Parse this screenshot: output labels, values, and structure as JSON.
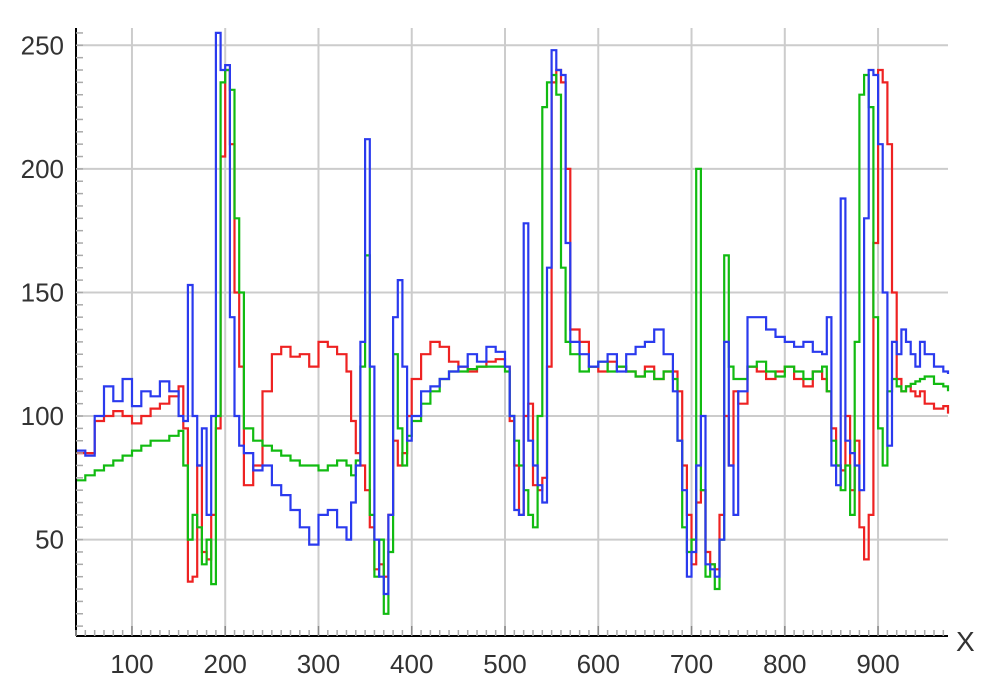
{
  "chart_data": {
    "type": "line",
    "title": "",
    "xlabel": "X",
    "ylabel": "",
    "xlim": [
      40,
      975
    ],
    "ylim": [
      11,
      257
    ],
    "x_ticks": [
      100,
      200,
      300,
      400,
      500,
      600,
      700,
      800,
      900
    ],
    "y_ticks": [
      50,
      100,
      150,
      200,
      250
    ],
    "x_tick_labels": [
      "100",
      "200",
      "300",
      "400",
      "500",
      "600",
      "700",
      "800",
      "900"
    ],
    "y_tick_labels": [
      "50",
      "100",
      "150",
      "200",
      "250"
    ],
    "grid": true,
    "legend": "none",
    "colors": {
      "red": "#ee2222",
      "green": "#11bb11",
      "blue": "#2a3aee",
      "grid": "#cccccc",
      "axis": "#000000"
    },
    "series": [
      {
        "color": "#ee2222",
        "x": [
          40,
          50,
          60,
          70,
          80,
          90,
          100,
          110,
          120,
          130,
          140,
          150,
          155,
          160,
          165,
          170,
          175,
          180,
          185,
          190,
          195,
          200,
          205,
          210,
          215,
          220,
          230,
          240,
          250,
          260,
          270,
          280,
          290,
          300,
          310,
          320,
          330,
          335,
          340,
          345,
          350,
          355,
          360,
          365,
          370,
          375,
          380,
          385,
          390,
          395,
          400,
          410,
          420,
          430,
          440,
          450,
          460,
          470,
          480,
          490,
          500,
          505,
          510,
          515,
          520,
          525,
          530,
          535,
          540,
          545,
          550,
          555,
          560,
          565,
          570,
          580,
          590,
          600,
          610,
          620,
          630,
          640,
          650,
          660,
          670,
          680,
          685,
          690,
          695,
          700,
          705,
          710,
          715,
          720,
          725,
          730,
          735,
          740,
          745,
          750,
          760,
          770,
          780,
          790,
          800,
          810,
          820,
          830,
          840,
          845,
          850,
          855,
          860,
          865,
          870,
          875,
          880,
          885,
          890,
          895,
          900,
          905,
          910,
          915,
          920,
          925,
          930,
          935,
          940,
          945,
          950,
          960,
          970,
          975
        ],
        "y": [
          85,
          85,
          98,
          100,
          102,
          100,
          97,
          100,
          103,
          105,
          108,
          112,
          95,
          33,
          35,
          80,
          45,
          42,
          60,
          95,
          205,
          240,
          210,
          150,
          120,
          72,
          80,
          110,
          125,
          128,
          124,
          125,
          120,
          130,
          128,
          125,
          118,
          98,
          85,
          80,
          70,
          55,
          38,
          40,
          35,
          60,
          90,
          80,
          85,
          100,
          115,
          125,
          130,
          128,
          122,
          120,
          118,
          120,
          122,
          123,
          120,
          98,
          80,
          60,
          100,
          105,
          72,
          70,
          75,
          120,
          235,
          240,
          235,
          200,
          135,
          130,
          120,
          118,
          122,
          120,
          118,
          116,
          120,
          115,
          118,
          118,
          110,
          80,
          60,
          40,
          65,
          70,
          45,
          40,
          38,
          60,
          100,
          80,
          110,
          105,
          120,
          118,
          115,
          118,
          120,
          115,
          112,
          118,
          115,
          110,
          95,
          80,
          78,
          100,
          70,
          90,
          55,
          42,
          60,
          170,
          240,
          235,
          210,
          150,
          115,
          110,
          112,
          110,
          108,
          110,
          105,
          103,
          104,
          101
        ]
      },
      {
        "color": "#11bb11",
        "x": [
          40,
          50,
          60,
          70,
          80,
          90,
          100,
          110,
          120,
          130,
          140,
          150,
          155,
          160,
          165,
          170,
          175,
          180,
          185,
          190,
          195,
          200,
          205,
          210,
          215,
          220,
          230,
          240,
          250,
          260,
          270,
          280,
          290,
          300,
          310,
          320,
          330,
          335,
          340,
          345,
          350,
          355,
          360,
          365,
          370,
          375,
          380,
          385,
          390,
          395,
          400,
          410,
          420,
          430,
          440,
          450,
          460,
          470,
          480,
          490,
          500,
          505,
          510,
          515,
          520,
          525,
          530,
          535,
          540,
          545,
          550,
          555,
          560,
          565,
          570,
          580,
          590,
          600,
          610,
          620,
          630,
          640,
          650,
          660,
          670,
          680,
          685,
          690,
          695,
          700,
          705,
          710,
          715,
          720,
          725,
          730,
          735,
          740,
          745,
          750,
          760,
          770,
          780,
          790,
          800,
          810,
          820,
          830,
          840,
          845,
          850,
          855,
          860,
          865,
          870,
          875,
          880,
          885,
          890,
          895,
          900,
          905,
          910,
          915,
          920,
          925,
          930,
          935,
          940,
          945,
          950,
          960,
          970,
          975
        ],
        "y": [
          74,
          76,
          78,
          80,
          82,
          84,
          86,
          88,
          90,
          90,
          92,
          94,
          80,
          50,
          60,
          55,
          40,
          50,
          32,
          100,
          235,
          240,
          232,
          180,
          150,
          95,
          90,
          88,
          86,
          84,
          82,
          80,
          80,
          78,
          80,
          82,
          80,
          76,
          82,
          120,
          165,
          60,
          35,
          50,
          20,
          45,
          125,
          95,
          80,
          92,
          98,
          105,
          110,
          115,
          118,
          118,
          119,
          120,
          120,
          120,
          118,
          100,
          90,
          80,
          70,
          60,
          55,
          100,
          225,
          235,
          238,
          230,
          160,
          130,
          125,
          118,
          120,
          122,
          118,
          120,
          118,
          116,
          118,
          115,
          118,
          115,
          90,
          55,
          45,
          50,
          200,
          70,
          35,
          40,
          30,
          50,
          165,
          120,
          115,
          115,
          120,
          122,
          118,
          116,
          120,
          118,
          115,
          118,
          120,
          110,
          90,
          80,
          70,
          80,
          60,
          130,
          230,
          238,
          225,
          140,
          95,
          80,
          110,
          115,
          112,
          110,
          112,
          113,
          114,
          115,
          116,
          113,
          112,
          110
        ]
      },
      {
        "color": "#2a3aee",
        "x": [
          40,
          50,
          60,
          70,
          80,
          90,
          100,
          110,
          120,
          130,
          140,
          150,
          155,
          160,
          165,
          170,
          175,
          180,
          185,
          190,
          195,
          200,
          205,
          210,
          215,
          220,
          230,
          240,
          250,
          260,
          270,
          280,
          290,
          300,
          310,
          320,
          330,
          335,
          340,
          345,
          350,
          355,
          360,
          365,
          370,
          375,
          380,
          385,
          390,
          395,
          400,
          410,
          420,
          430,
          440,
          450,
          460,
          470,
          480,
          490,
          500,
          505,
          510,
          515,
          520,
          525,
          530,
          535,
          540,
          545,
          550,
          555,
          560,
          565,
          570,
          580,
          590,
          600,
          610,
          620,
          630,
          640,
          650,
          660,
          670,
          680,
          685,
          690,
          695,
          700,
          705,
          710,
          715,
          720,
          725,
          730,
          735,
          740,
          745,
          750,
          760,
          770,
          780,
          790,
          800,
          810,
          820,
          830,
          840,
          845,
          850,
          855,
          860,
          865,
          870,
          875,
          880,
          885,
          890,
          895,
          900,
          905,
          910,
          915,
          920,
          925,
          930,
          935,
          940,
          945,
          950,
          960,
          970,
          975
        ],
        "y": [
          86,
          84,
          100,
          112,
          106,
          115,
          104,
          110,
          108,
          114,
          110,
          100,
          98,
          153,
          100,
          80,
          95,
          60,
          100,
          255,
          240,
          242,
          140,
          100,
          88,
          85,
          78,
          80,
          72,
          68,
          62,
          55,
          48,
          60,
          62,
          55,
          50,
          65,
          80,
          130,
          212,
          120,
          50,
          35,
          28,
          60,
          140,
          155,
          120,
          90,
          100,
          110,
          112,
          115,
          118,
          120,
          125,
          122,
          128,
          126,
          120,
          100,
          62,
          60,
          178,
          90,
          80,
          72,
          65,
          160,
          248,
          240,
          238,
          170,
          130,
          125,
          120,
          122,
          125,
          118,
          125,
          128,
          130,
          135,
          125,
          110,
          90,
          70,
          35,
          45,
          80,
          100,
          40,
          38,
          35,
          50,
          130,
          80,
          60,
          110,
          140,
          140,
          135,
          132,
          130,
          128,
          130,
          126,
          125,
          140,
          80,
          72,
          188,
          90,
          85,
          80,
          70,
          180,
          240,
          238,
          210,
          150,
          88,
          130,
          125,
          135,
          130,
          125,
          120,
          130,
          125,
          120,
          118,
          117
        ]
      }
    ]
  }
}
